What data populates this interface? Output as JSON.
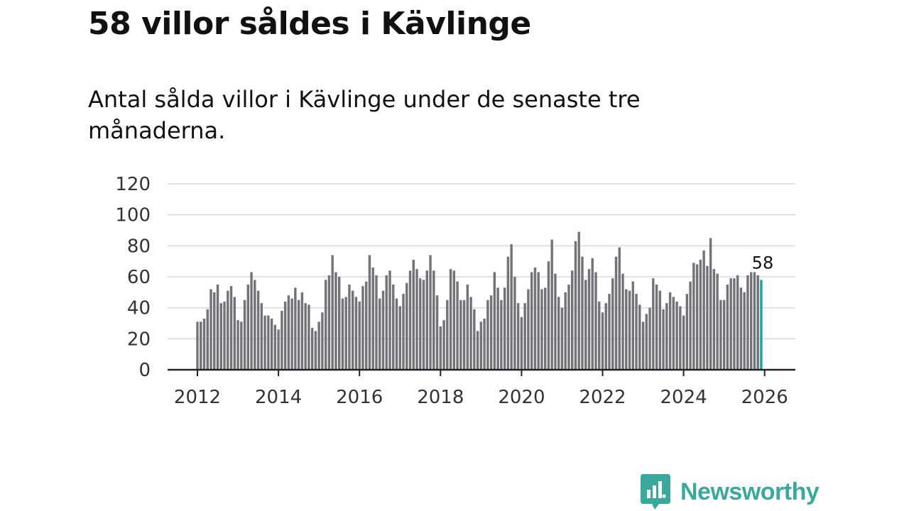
{
  "title": "58 villor såldes i Kävlinge",
  "subtitle": "Antal sålda villor i Kävlinge under de senaste tre månaderna.",
  "brand": {
    "name": "Newsworthy",
    "icon": "newsworthy-logo-icon",
    "color": "#3aa89c"
  },
  "chart_data": {
    "type": "bar",
    "title": "58 villor såldes i Kävlinge",
    "xlabel": "",
    "ylabel": "",
    "ylim": [
      0,
      120
    ],
    "yticks": [
      0,
      20,
      40,
      60,
      80,
      100,
      120
    ],
    "xticks": [
      2012,
      2014,
      2016,
      2018,
      2020,
      2022,
      2024,
      2026
    ],
    "x_start": 2012.0,
    "x_step": 0.08333333,
    "bar_color": "#737278",
    "highlight_color": "#1aa3a3",
    "highlight_label": "58",
    "grid": true,
    "values": [
      31,
      31,
      33,
      39,
      52,
      50,
      55,
      43,
      44,
      51,
      54,
      47,
      32,
      31,
      45,
      55,
      63,
      58,
      51,
      43,
      35,
      35,
      33,
      29,
      26,
      38,
      44,
      48,
      46,
      53,
      45,
      50,
      43,
      42,
      27,
      25,
      31,
      37,
      58,
      61,
      74,
      63,
      60,
      46,
      47,
      55,
      51,
      47,
      44,
      54,
      57,
      74,
      66,
      61,
      46,
      51,
      61,
      64,
      55,
      46,
      41,
      49,
      56,
      64,
      71,
      65,
      59,
      58,
      64,
      74,
      64,
      48,
      28,
      32,
      45,
      65,
      64,
      57,
      45,
      45,
      55,
      47,
      39,
      25,
      31,
      33,
      45,
      48,
      63,
      53,
      45,
      53,
      73,
      81,
      60,
      43,
      34,
      43,
      52,
      63,
      66,
      63,
      52,
      53,
      70,
      84,
      62,
      47,
      40,
      50,
      55,
      64,
      83,
      89,
      73,
      58,
      65,
      72,
      63,
      44,
      37,
      43,
      49,
      59,
      73,
      79,
      62,
      52,
      51,
      57,
      49,
      42,
      31,
      36,
      40,
      59,
      55,
      51,
      39,
      43,
      50,
      47,
      44,
      41,
      35,
      49,
      57,
      69,
      68,
      71,
      77,
      67,
      85,
      65,
      62,
      45,
      45,
      55,
      59,
      59,
      61,
      53,
      50,
      61,
      63,
      63,
      61,
      58
    ]
  }
}
